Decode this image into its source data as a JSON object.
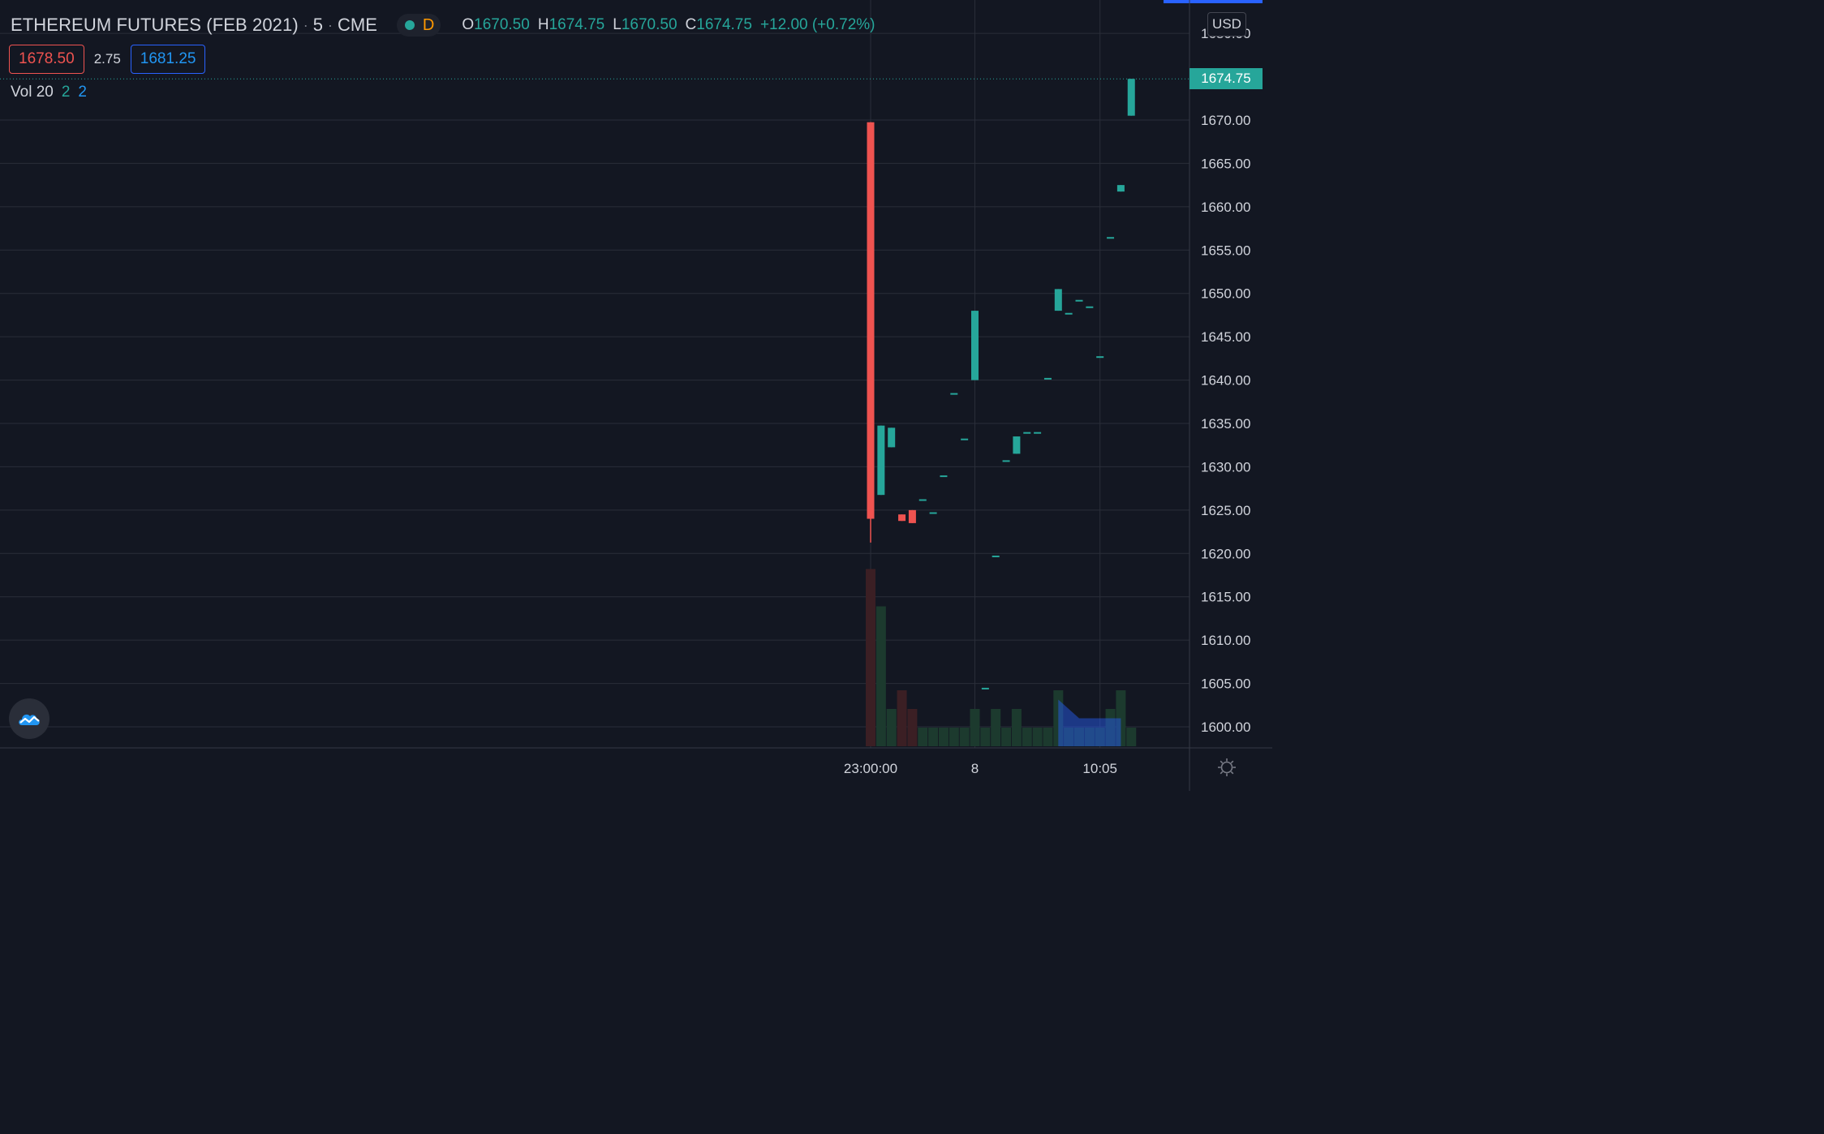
{
  "header": {
    "symbol": "ETHEREUM FUTURES (FEB 2021)",
    "interval": "5",
    "exchange": "CME",
    "market_status_letter": "D",
    "ohlc": {
      "o_label": "O",
      "o": "1670.50",
      "h_label": "H",
      "h": "1674.75",
      "l_label": "L",
      "l": "1670.50",
      "c_label": "C",
      "c": "1674.75",
      "change": "+12.00 (+0.72%)"
    }
  },
  "trade": {
    "bid": "1678.50",
    "spread": "2.75",
    "ask": "1681.25"
  },
  "volume_legend": {
    "label": "Vol 20",
    "v1": "2",
    "v2": "2"
  },
  "currency": "USD",
  "last_price_label": "1674.75",
  "icons": {
    "logo": "tradingview-cloud-icon",
    "settings": "gear-icon",
    "status_dot": "market-status-dot-icon"
  },
  "colors": {
    "background": "#131722",
    "up": "#26a69a",
    "down": "#ef5350",
    "grid": "#2a2e39",
    "text": "#d1d4dc",
    "accent": "#2962ff"
  },
  "chart_data": {
    "type": "candlestick",
    "title": "ETHEREUM FUTURES (FEB 2021) · 5 · CME",
    "y_ticks": [
      "1680.00",
      "1670.00",
      "1665.00",
      "1660.00",
      "1655.00",
      "1650.00",
      "1645.00",
      "1640.00",
      "1635.00",
      "1630.00",
      "1625.00",
      "1620.00",
      "1615.00",
      "1610.00",
      "1605.00",
      "1600.00"
    ],
    "ylim": [
      1597.5,
      1683.5
    ],
    "x_ticks": [
      {
        "label": "23:00:00",
        "bar": 0
      },
      {
        "label": "8",
        "bar": 10
      },
      {
        "label": "10:05",
        "bar": 22
      }
    ],
    "last_price": 1674.75,
    "grid": true,
    "candles": [
      {
        "o": 1669.75,
        "h": 1669.75,
        "l": 1621.25,
        "c": 1624.0,
        "v": 19
      },
      {
        "o": 1626.75,
        "h": 1634.75,
        "l": 1626.75,
        "c": 1634.75,
        "v": 15
      },
      {
        "o": 1632.25,
        "h": 1634.5,
        "l": 1632.25,
        "c": 1634.5,
        "v": 4
      },
      {
        "o": 1624.5,
        "h": 1624.5,
        "l": 1623.75,
        "c": 1623.75,
        "v": 6
      },
      {
        "o": 1625.0,
        "h": 1625.0,
        "l": 1623.5,
        "c": 1623.5,
        "v": 4
      },
      {
        "o": 1626.25,
        "h": 1626.25,
        "l": 1626.25,
        "c": 1626.25,
        "v": 2
      },
      {
        "o": 1624.75,
        "h": 1624.75,
        "l": 1624.75,
        "c": 1624.75,
        "v": 2
      },
      {
        "o": 1629.0,
        "h": 1629.0,
        "l": 1629.0,
        "c": 1629.0,
        "v": 2
      },
      {
        "o": 1638.5,
        "h": 1638.5,
        "l": 1638.5,
        "c": 1638.5,
        "v": 2
      },
      {
        "o": 1633.25,
        "h": 1633.25,
        "l": 1633.25,
        "c": 1633.25,
        "v": 2
      },
      {
        "o": 1640.0,
        "h": 1648.0,
        "l": 1640.0,
        "c": 1648.0,
        "v": 4
      },
      {
        "o": 1604.5,
        "h": 1604.5,
        "l": 1604.5,
        "c": 1604.5,
        "v": 2
      },
      {
        "o": 1619.75,
        "h": 1619.75,
        "l": 1619.75,
        "c": 1619.75,
        "v": 4
      },
      {
        "o": 1630.75,
        "h": 1630.75,
        "l": 1630.75,
        "c": 1630.75,
        "v": 2
      },
      {
        "o": 1631.5,
        "h": 1633.5,
        "l": 1631.5,
        "c": 1633.5,
        "v": 4
      },
      {
        "o": 1634.0,
        "h": 1634.0,
        "l": 1634.0,
        "c": 1634.0,
        "v": 2
      },
      {
        "o": 1634.0,
        "h": 1634.0,
        "l": 1634.0,
        "c": 1634.0,
        "v": 2
      },
      {
        "o": 1640.25,
        "h": 1640.25,
        "l": 1640.25,
        "c": 1640.25,
        "v": 2
      },
      {
        "o": 1648.0,
        "h": 1650.5,
        "l": 1648.0,
        "c": 1650.5,
        "v": 6
      },
      {
        "o": 1647.75,
        "h": 1647.75,
        "l": 1647.75,
        "c": 1647.75,
        "v": 2
      },
      {
        "o": 1649.25,
        "h": 1649.25,
        "l": 1649.25,
        "c": 1649.25,
        "v": 2
      },
      {
        "o": 1648.5,
        "h": 1648.5,
        "l": 1648.5,
        "c": 1648.5,
        "v": 2
      },
      {
        "o": 1642.75,
        "h": 1642.75,
        "l": 1642.75,
        "c": 1642.75,
        "v": 2
      },
      {
        "o": 1656.5,
        "h": 1656.5,
        "l": 1656.5,
        "c": 1656.5,
        "v": 4
      },
      {
        "o": 1661.75,
        "h": 1662.5,
        "l": 1661.75,
        "c": 1662.5,
        "v": 6
      },
      {
        "o": 1670.5,
        "h": 1674.75,
        "l": 1670.5,
        "c": 1674.75,
        "v": 2
      }
    ],
    "volume_ma": [
      5,
      4,
      3,
      3,
      3,
      3,
      3
    ]
  }
}
